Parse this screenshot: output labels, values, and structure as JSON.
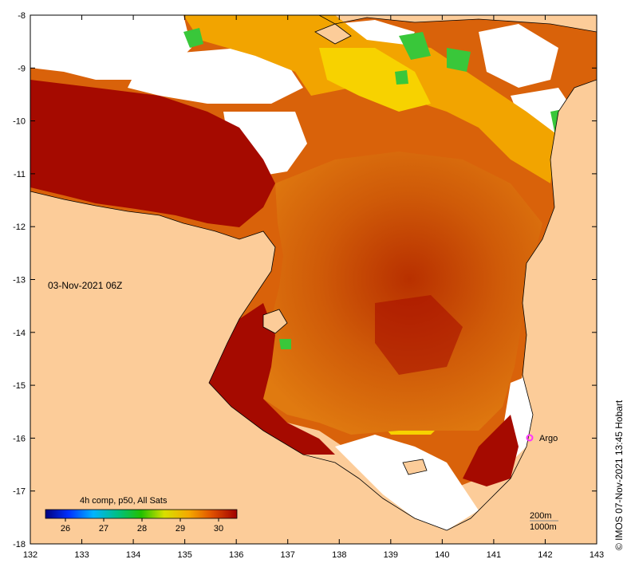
{
  "map": {
    "timestamp": "03-Nov-2021 06Z",
    "x_axis": {
      "ticks": [
        "132",
        "133",
        "134",
        "135",
        "136",
        "137",
        "138",
        "139",
        "140",
        "141",
        "142",
        "143"
      ]
    },
    "y_axis": {
      "ticks": [
        "-8",
        "-9",
        "-10",
        "-11",
        "-12",
        "-13",
        "-14",
        "-15",
        "-16",
        "-17",
        "-18"
      ]
    },
    "argo_label": "Argo",
    "argo_color": "#ff33ff",
    "colorbar": {
      "title": "4h comp, p50, All Sats",
      "ticks": [
        "26",
        "27",
        "28",
        "29",
        "30"
      ]
    },
    "contours": {
      "line1": "200m",
      "line2": "1000m"
    },
    "credit": "© IMOS 07-Nov-2021 13:45 Hobart",
    "colors": {
      "land": "#fccc99",
      "no_data": "#ffffff",
      "sst_hot": "#a50a00",
      "sst_mid": "#d9620a",
      "sst_warm": "#f2a400",
      "sst_cool": "#f7d200",
      "sst_green": "#39c73a"
    }
  }
}
